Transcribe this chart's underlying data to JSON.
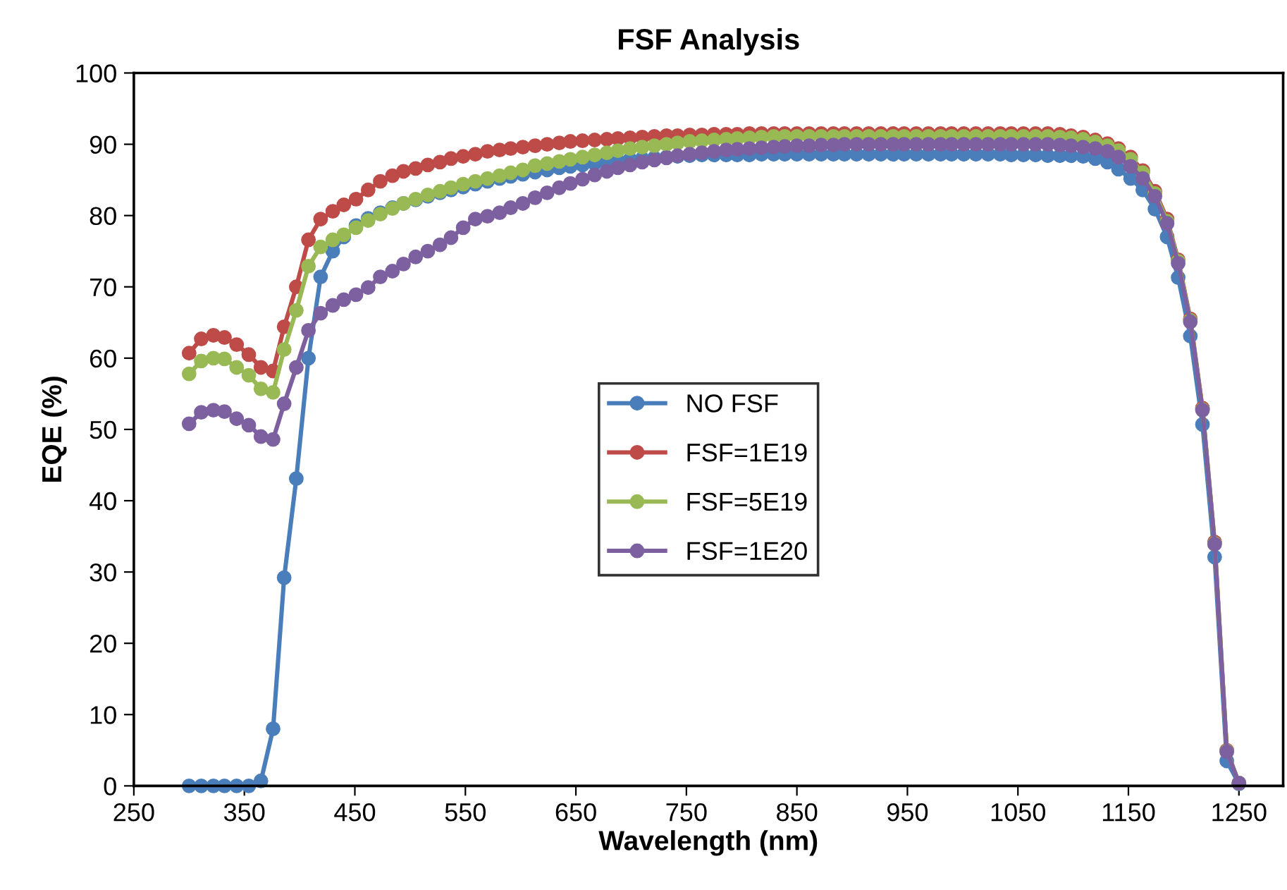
{
  "chart_data": {
    "type": "line",
    "title": "FSF Analysis",
    "xlabel": "Wavelength (nm)",
    "ylabel": "EQE (%)",
    "x": [
      300,
      311,
      322,
      332,
      343,
      354,
      365,
      376,
      386,
      397,
      408,
      419,
      430,
      440,
      451,
      462,
      473,
      484,
      494,
      505,
      516,
      527,
      537,
      548,
      559,
      570,
      581,
      591,
      602,
      613,
      624,
      635,
      645,
      656,
      667,
      678,
      688,
      699,
      710,
      721,
      732,
      742,
      753,
      764,
      775,
      786,
      796,
      807,
      818,
      829,
      839,
      850,
      861,
      872,
      883,
      893,
      904,
      915,
      926,
      937,
      947,
      958,
      969,
      980,
      990,
      1001,
      1012,
      1023,
      1034,
      1044,
      1055,
      1066,
      1077,
      1088,
      1098,
      1109,
      1120,
      1131,
      1141,
      1152,
      1163,
      1174,
      1185,
      1195,
      1206,
      1217,
      1228,
      1239,
      1250
    ],
    "series": [
      {
        "name": "NO FSF",
        "color": "#4a7ebb",
        "values": [
          0,
          0,
          0,
          0,
          0,
          0,
          0.7,
          8.0,
          29.2,
          43.1,
          60.0,
          71.4,
          75.0,
          77.0,
          78.6,
          79.6,
          80.4,
          81.1,
          81.7,
          82.2,
          82.7,
          83.2,
          83.6,
          84.0,
          84.4,
          84.8,
          85.2,
          85.5,
          85.8,
          86.1,
          86.4,
          86.7,
          86.9,
          87.1,
          87.3,
          87.5,
          87.7,
          87.9,
          88.0,
          88.1,
          88.2,
          88.3,
          88.4,
          88.5,
          88.5,
          88.5,
          88.5,
          88.5,
          88.6,
          88.6,
          88.6,
          88.6,
          88.6,
          88.6,
          88.6,
          88.6,
          88.6,
          88.6,
          88.6,
          88.6,
          88.6,
          88.6,
          88.6,
          88.6,
          88.6,
          88.6,
          88.6,
          88.6,
          88.6,
          88.5,
          88.5,
          88.5,
          88.4,
          88.4,
          88.4,
          88.3,
          88.0,
          87.5,
          86.5,
          85.2,
          83.6,
          80.9,
          77.0,
          71.3,
          63.1,
          50.7,
          32.1,
          3.5,
          0.3
        ]
      },
      {
        "name": "FSF=1E19",
        "color": "#be4b48",
        "values": [
          60.7,
          62.7,
          63.2,
          62.9,
          61.9,
          60.5,
          58.7,
          58.2,
          64.4,
          70.0,
          76.6,
          79.5,
          80.6,
          81.5,
          82.3,
          83.6,
          84.8,
          85.6,
          86.2,
          86.6,
          87.1,
          87.5,
          88.0,
          88.3,
          88.6,
          89.0,
          89.2,
          89.4,
          89.6,
          89.8,
          90.0,
          90.2,
          90.4,
          90.5,
          90.6,
          90.7,
          90.8,
          90.9,
          91.0,
          91.1,
          91.2,
          91.2,
          91.3,
          91.3,
          91.4,
          91.4,
          91.4,
          91.5,
          91.5,
          91.5,
          91.5,
          91.5,
          91.5,
          91.5,
          91.5,
          91.5,
          91.5,
          91.5,
          91.5,
          91.5,
          91.5,
          91.5,
          91.5,
          91.5,
          91.5,
          91.5,
          91.5,
          91.5,
          91.5,
          91.5,
          91.5,
          91.5,
          91.5,
          91.4,
          91.2,
          91.0,
          90.6,
          90.1,
          89.4,
          88.2,
          86.3,
          83.4,
          79.5,
          73.8,
          65.5,
          53.0,
          34.2,
          5.0,
          0.4
        ]
      },
      {
        "name": "FSF=5E19",
        "color": "#98b954",
        "values": [
          57.8,
          59.6,
          60.0,
          59.9,
          58.7,
          57.6,
          55.7,
          55.2,
          61.2,
          66.7,
          72.9,
          75.6,
          76.6,
          77.3,
          78.3,
          79.3,
          80.2,
          81.0,
          81.7,
          82.3,
          82.9,
          83.4,
          83.9,
          84.4,
          84.8,
          85.2,
          85.6,
          86.0,
          86.4,
          87.0,
          87.3,
          87.6,
          87.9,
          88.2,
          88.5,
          88.8,
          89.1,
          89.4,
          89.6,
          89.8,
          90.0,
          90.2,
          90.4,
          90.5,
          90.6,
          90.7,
          90.8,
          90.9,
          91.0,
          91.1,
          91.1,
          91.1,
          91.1,
          91.1,
          91.1,
          91.1,
          91.1,
          91.1,
          91.1,
          91.1,
          91.1,
          91.1,
          91.1,
          91.1,
          91.1,
          91.1,
          91.1,
          91.1,
          91.1,
          91.1,
          91.1,
          91.1,
          91.1,
          91.0,
          90.9,
          90.7,
          90.3,
          89.8,
          89.1,
          87.9,
          86.0,
          83.1,
          79.2,
          73.6,
          65.3,
          52.8,
          34.0,
          4.9,
          0.4
        ]
      },
      {
        "name": "FSF=1E20",
        "color": "#7d60a0",
        "values": [
          50.8,
          52.4,
          52.7,
          52.5,
          51.5,
          50.6,
          49.0,
          48.6,
          53.6,
          58.7,
          63.9,
          66.3,
          67.4,
          68.2,
          68.9,
          69.9,
          71.4,
          72.2,
          73.2,
          74.2,
          75.0,
          75.9,
          76.9,
          78.3,
          79.5,
          79.9,
          80.4,
          81.1,
          81.7,
          82.5,
          83.2,
          83.9,
          84.5,
          85.1,
          85.7,
          86.2,
          86.7,
          87.1,
          87.5,
          87.8,
          88.1,
          88.4,
          88.6,
          88.8,
          89.0,
          89.2,
          89.3,
          89.4,
          89.5,
          89.6,
          89.7,
          89.8,
          89.8,
          89.9,
          89.9,
          90.0,
          90.0,
          90.0,
          90.0,
          90.0,
          90.0,
          90.0,
          90.0,
          90.0,
          90.0,
          90.0,
          90.0,
          90.0,
          90.0,
          90.0,
          90.0,
          90.0,
          90.0,
          89.9,
          89.8,
          89.6,
          89.4,
          89.0,
          88.2,
          86.9,
          85.2,
          82.7,
          78.9,
          73.3,
          65.1,
          52.7,
          33.9,
          4.8,
          0.4
        ]
      }
    ],
    "xlim": [
      250,
      1290
    ],
    "xticks": [
      250,
      350,
      450,
      550,
      650,
      750,
      850,
      950,
      1050,
      1150,
      1250
    ],
    "ylim": [
      0,
      100
    ],
    "yticks": [
      0,
      10,
      20,
      30,
      40,
      50,
      60,
      70,
      80,
      90,
      100
    ],
    "grid": false,
    "legend": "center",
    "marker": "circle",
    "line_style": "solid"
  }
}
